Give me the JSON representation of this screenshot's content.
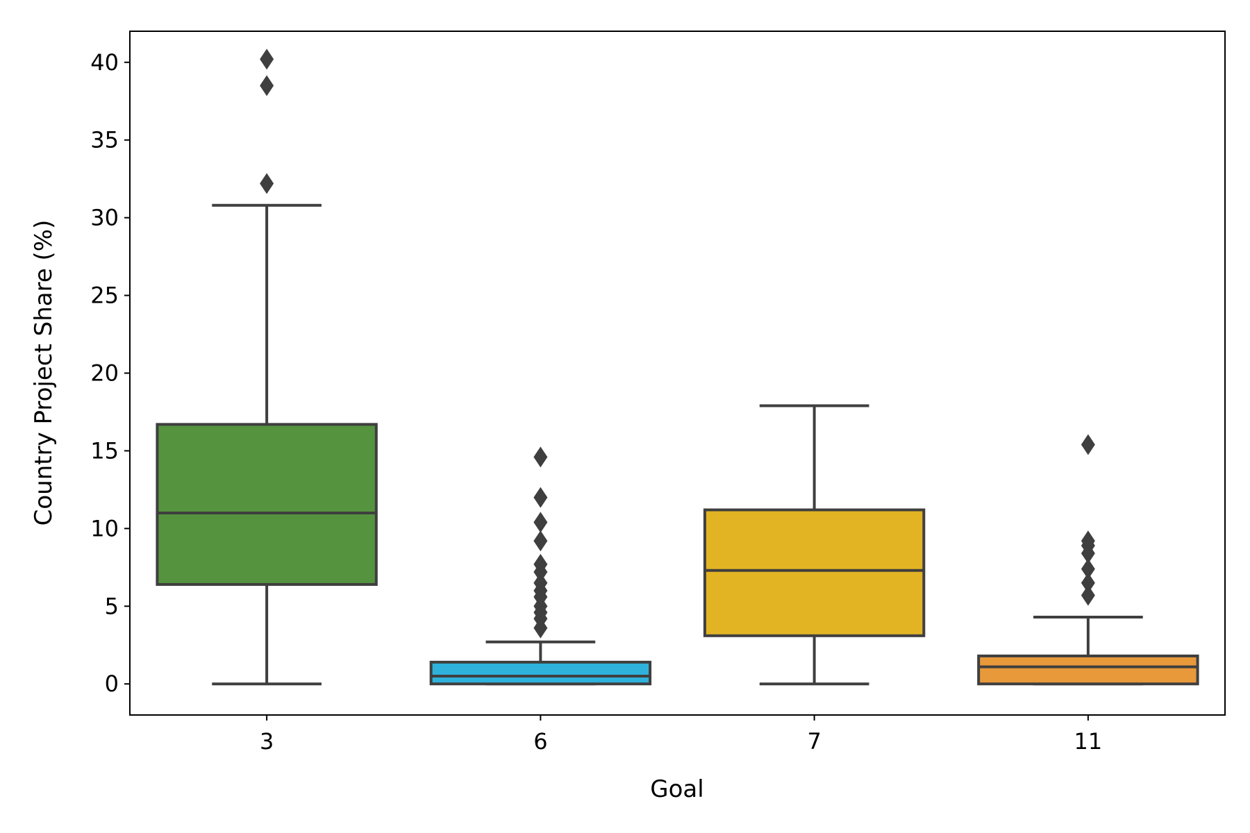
{
  "chart_data": {
    "type": "box",
    "title": "",
    "xlabel": "Goal",
    "ylabel": "Country Project Share (%)",
    "ylim": [
      -2,
      42
    ],
    "yticks": [
      0,
      5,
      10,
      15,
      20,
      25,
      30,
      35,
      40
    ],
    "categories": [
      "3",
      "6",
      "7",
      "11"
    ],
    "colors": [
      "#55933f",
      "#2eb2dc",
      "#e2b424",
      "#e8993a"
    ],
    "line_color": "#3f3f3f",
    "boxes": [
      {
        "category": "3",
        "whisker_low": 0,
        "q1": 6.4,
        "median": 11.0,
        "q3": 16.7,
        "whisker_high": 30.8,
        "outliers": [
          32.2,
          38.5,
          40.2
        ]
      },
      {
        "category": "6",
        "whisker_low": 0,
        "q1": 0.0,
        "median": 0.5,
        "q3": 1.4,
        "whisker_high": 2.7,
        "outliers": [
          3.6,
          4.2,
          4.6,
          5.0,
          5.6,
          6.0,
          6.5,
          7.2,
          7.7,
          9.2,
          10.4,
          12.0,
          14.6
        ]
      },
      {
        "category": "7",
        "whisker_low": 0,
        "q1": 3.1,
        "median": 7.3,
        "q3": 11.2,
        "whisker_high": 17.9,
        "outliers": []
      },
      {
        "category": "11",
        "whisker_low": 0,
        "q1": 0.0,
        "median": 1.1,
        "q3": 1.8,
        "whisker_high": 4.3,
        "outliers": [
          5.7,
          6.5,
          7.4,
          8.4,
          8.9,
          9.2,
          15.4
        ]
      }
    ]
  }
}
